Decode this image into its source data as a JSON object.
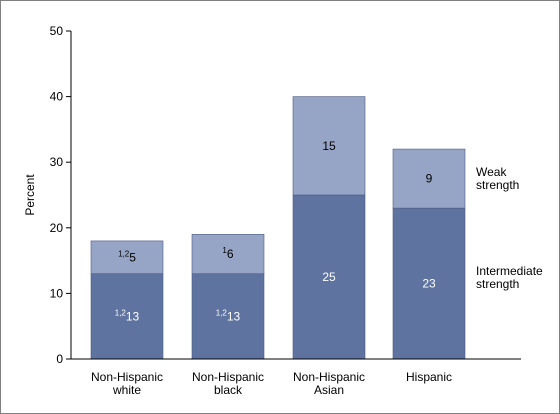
{
  "chart_data": {
    "type": "bar",
    "stacked": true,
    "categories": [
      [
        "Non-Hispanic",
        "white"
      ],
      [
        "Non-Hispanic",
        "black"
      ],
      [
        "Non-Hispanic",
        "Asian"
      ],
      [
        "Hispanic"
      ]
    ],
    "ylabel": "Percent",
    "ylim": [
      0,
      50
    ],
    "yticks": [
      0,
      10,
      20,
      30,
      40,
      50
    ],
    "grid": false,
    "series": [
      {
        "name": "Intermediate strength",
        "legend_lines": [
          "Intermediate",
          "strength"
        ],
        "color": "#5f73a0",
        "label_color": "#ffffff",
        "values": [
          13,
          13,
          25,
          23
        ],
        "labels": [
          "13",
          "13",
          "25",
          "23"
        ],
        "label_superscripts": [
          "1,2",
          "1,2",
          "",
          ""
        ]
      },
      {
        "name": "Weak strength",
        "legend_lines": [
          "Weak",
          "strength"
        ],
        "color": "#96a5c6",
        "label_color": "#000000",
        "values": [
          5,
          6,
          15,
          9
        ],
        "labels": [
          "5",
          "6",
          "15",
          "9"
        ],
        "label_superscripts": [
          "1,2",
          "1",
          "",
          ""
        ]
      }
    ],
    "legend_placement": "right"
  }
}
